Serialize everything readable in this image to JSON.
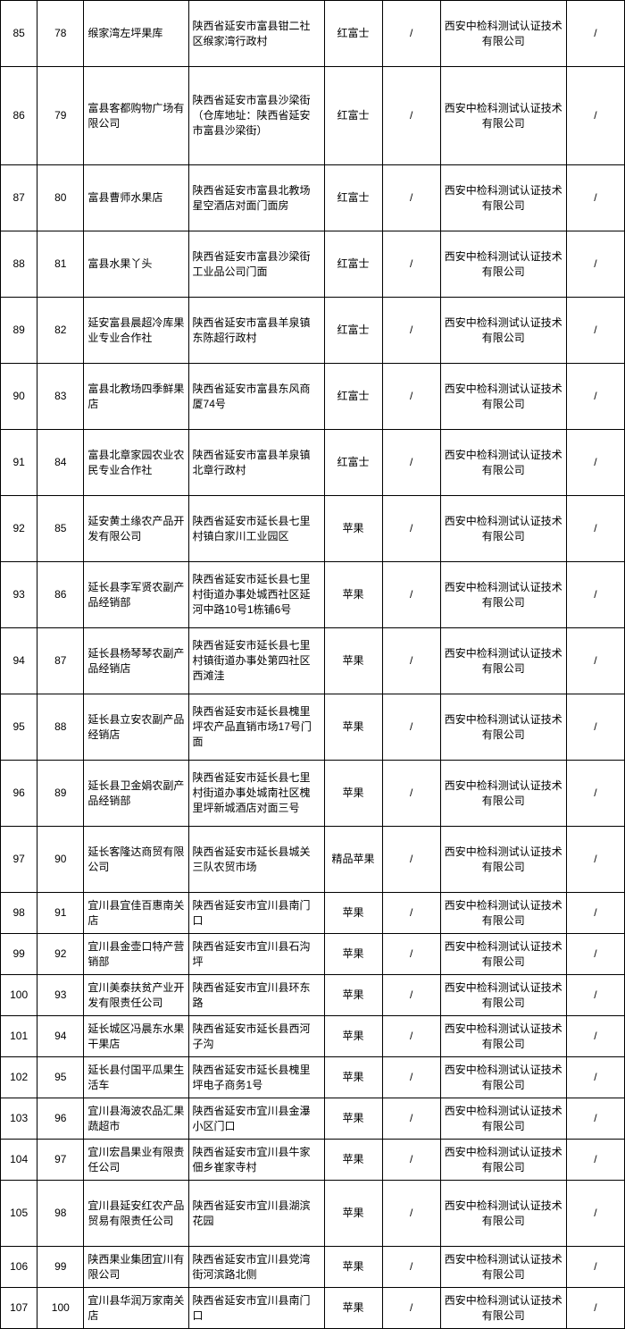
{
  "rows": [
    {
      "seq1": "85",
      "seq2": "78",
      "name": "缑家湾左坪果库",
      "addr": "陕西省延安市富县钳二社区缑家湾行政村",
      "prod": "红富士",
      "c5": "/",
      "org": "西安中检科测试认证技术有限公司",
      "c7": "/",
      "cls": "med"
    },
    {
      "seq1": "86",
      "seq2": "79",
      "name": "富县客都购物广场有限公司",
      "addr": "陕西省延安市富县沙梁街（仓库地址：陕西省延安市富县沙梁街）",
      "prod": "红富士",
      "c5": "/",
      "org": "西安中检科测试认证技术有限公司",
      "c7": "/",
      "cls": "tall"
    },
    {
      "seq1": "87",
      "seq2": "80",
      "name": "富县曹师水果店",
      "addr": "陕西省延安市富县北教场星空酒店对面门面房",
      "prod": "红富士",
      "c5": "/",
      "org": "西安中检科测试认证技术有限公司",
      "c7": "/",
      "cls": "med"
    },
    {
      "seq1": "88",
      "seq2": "81",
      "name": "富县水果丫头",
      "addr": "陕西省延安市富县沙梁街工业品公司门面",
      "prod": "红富士",
      "c5": "/",
      "org": "西安中检科测试认证技术有限公司",
      "c7": "/",
      "cls": "med"
    },
    {
      "seq1": "89",
      "seq2": "82",
      "name": "延安富县晨超冷库果业专业合作社",
      "addr": "陕西省延安市富县羊泉镇东陈超行政村",
      "prod": "红富士",
      "c5": "/",
      "org": "西安中检科测试认证技术有限公司",
      "c7": "/",
      "cls": "med"
    },
    {
      "seq1": "90",
      "seq2": "83",
      "name": "富县北教场四季鲜果店",
      "addr": "陕西省延安市富县东风商厦74号",
      "prod": "红富士",
      "c5": "/",
      "org": "西安中检科测试认证技术有限公司",
      "c7": "/",
      "cls": "med"
    },
    {
      "seq1": "91",
      "seq2": "84",
      "name": "富县北章家园农业农民专业合作社",
      "addr": "陕西省延安市富县羊泉镇北章行政村",
      "prod": "红富士",
      "c5": "/",
      "org": "西安中检科测试认证技术有限公司",
      "c7": "/",
      "cls": "med"
    },
    {
      "seq1": "92",
      "seq2": "85",
      "name": "延安黄土缘农产品开发有限公司",
      "addr": "陕西省延安市延长县七里村镇白家川工业园区",
      "prod": "苹果",
      "c5": "/",
      "org": "西安中检科测试认证技术有限公司",
      "c7": "/",
      "cls": "med"
    },
    {
      "seq1": "93",
      "seq2": "86",
      "name": "延长县李军贤农副产品经销部",
      "addr": "陕西省延安市延长县七里村街道办事处城西社区延河中路10号1栋铺6号",
      "prod": "苹果",
      "c5": "/",
      "org": "西安中检科测试认证技术有限公司",
      "c7": "/",
      "cls": "med"
    },
    {
      "seq1": "94",
      "seq2": "87",
      "name": "延长县杨琴琴农副产品经销店",
      "addr": "陕西省延安市延长县七里村镇街道办事处第四社区西滩洼",
      "prod": "苹果",
      "c5": "/",
      "org": "西安中检科测试认证技术有限公司",
      "c7": "/",
      "cls": "med"
    },
    {
      "seq1": "95",
      "seq2": "88",
      "name": "延长县立安农副产品经销店",
      "addr": "陕西省延安市延长县槐里坪农产品直销市场17号门面",
      "prod": "苹果",
      "c5": "/",
      "org": "西安中检科测试认证技术有限公司",
      "c7": "/",
      "cls": "med"
    },
    {
      "seq1": "96",
      "seq2": "89",
      "name": "延长县卫金娟农副产品经销部",
      "addr": "陕西省延安市延长县七里村街道办事处城南社区槐里坪新城酒店对面三号",
      "prod": "苹果",
      "c5": "/",
      "org": "西安中检科测试认证技术有限公司",
      "c7": "/",
      "cls": "med"
    },
    {
      "seq1": "97",
      "seq2": "90",
      "name": "延长客隆达商贸有限公司",
      "addr": "陕西省延安市延长县城关三队农贸市场",
      "prod": "精品苹果",
      "c5": "/",
      "org": "西安中检科测试认证技术有限公司",
      "c7": "/",
      "cls": "med"
    },
    {
      "seq1": "98",
      "seq2": "91",
      "name": "宜川县宜佳百惠南关店",
      "addr": "陕西省延安市宜川县南门口",
      "prod": "苹果",
      "c5": "/",
      "org": "西安中检科测试认证技术有限公司",
      "c7": "/",
      "cls": "short"
    },
    {
      "seq1": "99",
      "seq2": "92",
      "name": "宜川县金壶口特产营销部",
      "addr": "陕西省延安市宜川县石沟坪",
      "prod": "苹果",
      "c5": "/",
      "org": "西安中检科测试认证技术有限公司",
      "c7": "/",
      "cls": "short"
    },
    {
      "seq1": "100",
      "seq2": "93",
      "name": "宜川美泰扶贫产业开发有限责任公司",
      "addr": "陕西省延安市宜川县环东路",
      "prod": "苹果",
      "c5": "/",
      "org": "西安中检科测试认证技术有限公司",
      "c7": "/",
      "cls": "short"
    },
    {
      "seq1": "101",
      "seq2": "94",
      "name": "延长城区冯晨东水果干果店",
      "addr": "陕西省延安市延长县西河子沟",
      "prod": "苹果",
      "c5": "/",
      "org": "西安中检科测试认证技术有限公司",
      "c7": "/",
      "cls": "short"
    },
    {
      "seq1": "102",
      "seq2": "95",
      "name": "延长县付国平瓜果生活车",
      "addr": "陕西省延安市延长县槐里坪电子商务1号",
      "prod": "苹果",
      "c5": "/",
      "org": "西安中检科测试认证技术有限公司",
      "c7": "/",
      "cls": "short"
    },
    {
      "seq1": "103",
      "seq2": "96",
      "name": "宜川县海波农品汇果蔬超市",
      "addr": "陕西省延安市宜川县金瀑小区门口",
      "prod": "苹果",
      "c5": "/",
      "org": "西安中检科测试认证技术有限公司",
      "c7": "/",
      "cls": "short"
    },
    {
      "seq1": "104",
      "seq2": "97",
      "name": "宜川宏昌果业有限责任公司",
      "addr": "陕西省延安市宜川县牛家佃乡崔家寺村",
      "prod": "苹果",
      "c5": "/",
      "org": "西安中检科测试认证技术有限公司",
      "c7": "/",
      "cls": "short"
    },
    {
      "seq1": "105",
      "seq2": "98",
      "name": "宜川县延安红农产品贸易有限责任公司",
      "addr": "陕西省延安市宜川县湖滨花园",
      "prod": "苹果",
      "c5": "/",
      "org": "西安中检科测试认证技术有限公司",
      "c7": "/",
      "cls": "med"
    },
    {
      "seq1": "106",
      "seq2": "99",
      "name": "陕西果业集团宜川有限公司",
      "addr": "陕西省延安市宜川县党湾街河滨路北侧",
      "prod": "苹果",
      "c5": "/",
      "org": "西安中检科测试认证技术有限公司",
      "c7": "/",
      "cls": "short"
    },
    {
      "seq1": "107",
      "seq2": "100",
      "name": "宜川县华润万家南关店",
      "addr": "陕西省延安市宜川县南门口",
      "prod": "苹果",
      "c5": "/",
      "org": "西安中检科测试认证技术有限公司",
      "c7": "/",
      "cls": "short"
    }
  ]
}
